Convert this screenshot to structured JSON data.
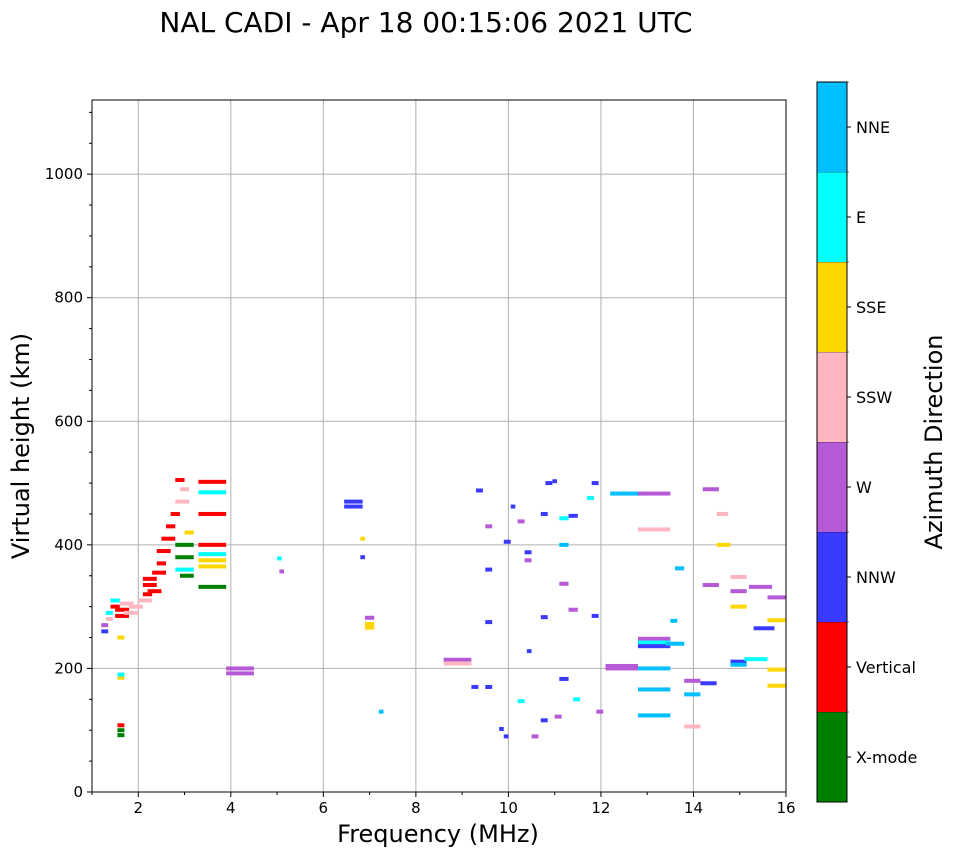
{
  "title": "NAL CADI - Apr 18 00:15:06 2021 UTC",
  "chart_data": {
    "type": "scatter",
    "xlabel": "Frequency (MHz)",
    "ylabel": "Virtual height (km)",
    "xlim": [
      1,
      16
    ],
    "ylim": [
      0,
      1120
    ],
    "xticks": [
      2,
      4,
      6,
      8,
      10,
      12,
      14,
      16
    ],
    "yticks": [
      0,
      200,
      400,
      600,
      800,
      1000
    ],
    "grid": true,
    "colorbar": {
      "label": "Azimuth Direction",
      "categories": [
        {
          "name": "X-mode",
          "color": "#008000"
        },
        {
          "name": "Vertical",
          "color": "#ff0000"
        },
        {
          "name": "NNW",
          "color": "#3a3aff"
        },
        {
          "name": "W",
          "color": "#b659d6"
        },
        {
          "name": "SSW",
          "color": "#ffb6c1"
        },
        {
          "name": "SSE",
          "color": "#ffd700"
        },
        {
          "name": "E",
          "color": "#00ffff"
        },
        {
          "name": "NNE",
          "color": "#00bfff"
        }
      ]
    },
    "segments": [
      {
        "f0": 1.2,
        "f1": 1.35,
        "h": 270,
        "c": "W"
      },
      {
        "f0": 1.2,
        "f1": 1.35,
        "h": 260,
        "c": "NNW"
      },
      {
        "f0": 1.3,
        "f1": 1.45,
        "h": 290,
        "c": "E"
      },
      {
        "f0": 1.3,
        "f1": 1.45,
        "h": 280,
        "c": "SSW"
      },
      {
        "f0": 1.4,
        "f1": 1.6,
        "h": 300,
        "c": "Vertical"
      },
      {
        "f0": 1.4,
        "f1": 1.6,
        "h": 310,
        "c": "E"
      },
      {
        "f0": 1.5,
        "f1": 1.8,
        "h": 295,
        "c": "Vertical"
      },
      {
        "f0": 1.5,
        "f1": 1.8,
        "h": 285,
        "c": "Vertical"
      },
      {
        "f0": 1.6,
        "f1": 1.9,
        "h": 305,
        "c": "SSW"
      },
      {
        "f0": 1.7,
        "f1": 2.0,
        "h": 290,
        "c": "SSW"
      },
      {
        "f0": 1.8,
        "f1": 2.1,
        "h": 300,
        "c": "SSW"
      },
      {
        "f0": 2.0,
        "f1": 2.3,
        "h": 310,
        "c": "SSW"
      },
      {
        "f0": 2.1,
        "f1": 2.3,
        "h": 320,
        "c": "Vertical"
      },
      {
        "f0": 2.1,
        "f1": 2.4,
        "h": 335,
        "c": "Vertical"
      },
      {
        "f0": 2.1,
        "f1": 2.4,
        "h": 345,
        "c": "Vertical"
      },
      {
        "f0": 2.2,
        "f1": 2.5,
        "h": 325,
        "c": "Vertical"
      },
      {
        "f0": 2.3,
        "f1": 2.6,
        "h": 355,
        "c": "Vertical"
      },
      {
        "f0": 2.4,
        "f1": 2.6,
        "h": 370,
        "c": "Vertical"
      },
      {
        "f0": 2.4,
        "f1": 2.7,
        "h": 390,
        "c": "Vertical"
      },
      {
        "f0": 2.5,
        "f1": 2.8,
        "h": 410,
        "c": "Vertical"
      },
      {
        "f0": 2.6,
        "f1": 2.8,
        "h": 430,
        "c": "Vertical"
      },
      {
        "f0": 2.7,
        "f1": 2.9,
        "h": 450,
        "c": "Vertical"
      },
      {
        "f0": 2.8,
        "f1": 3.0,
        "h": 505,
        "c": "Vertical"
      },
      {
        "f0": 2.8,
        "f1": 3.1,
        "h": 470,
        "c": "SSW"
      },
      {
        "f0": 2.9,
        "f1": 3.1,
        "h": 490,
        "c": "SSW"
      },
      {
        "f0": 2.8,
        "f1": 3.2,
        "h": 400,
        "c": "X-mode"
      },
      {
        "f0": 2.8,
        "f1": 3.2,
        "h": 380,
        "c": "X-mode"
      },
      {
        "f0": 2.8,
        "f1": 3.2,
        "h": 360,
        "c": "E"
      },
      {
        "f0": 2.9,
        "f1": 3.2,
        "h": 350,
        "c": "X-mode"
      },
      {
        "f0": 3.0,
        "f1": 3.2,
        "h": 420,
        "c": "SSE"
      },
      {
        "f0": 3.3,
        "f1": 3.9,
        "h": 502,
        "c": "Vertical"
      },
      {
        "f0": 3.3,
        "f1": 3.9,
        "h": 485,
        "c": "E"
      },
      {
        "f0": 3.3,
        "f1": 3.9,
        "h": 450,
        "c": "Vertical"
      },
      {
        "f0": 3.3,
        "f1": 3.9,
        "h": 400,
        "c": "Vertical"
      },
      {
        "f0": 3.3,
        "f1": 3.9,
        "h": 385,
        "c": "E"
      },
      {
        "f0": 3.3,
        "f1": 3.9,
        "h": 375,
        "c": "SSE"
      },
      {
        "f0": 3.3,
        "f1": 3.9,
        "h": 365,
        "c": "SSE"
      },
      {
        "f0": 3.3,
        "f1": 3.9,
        "h": 332,
        "c": "X-mode"
      },
      {
        "f0": 3.9,
        "f1": 4.5,
        "h": 200,
        "c": "W"
      },
      {
        "f0": 3.9,
        "f1": 4.5,
        "h": 192,
        "c": "W"
      },
      {
        "f0": 5.0,
        "f1": 5.1,
        "h": 378,
        "c": "E"
      },
      {
        "f0": 5.05,
        "f1": 5.15,
        "h": 357,
        "c": "W"
      },
      {
        "f0": 6.45,
        "f1": 6.85,
        "h": 470,
        "c": "NNW"
      },
      {
        "f0": 6.45,
        "f1": 6.85,
        "h": 462,
        "c": "NNW"
      },
      {
        "f0": 6.9,
        "f1": 7.1,
        "h": 282,
        "c": "W"
      },
      {
        "f0": 6.9,
        "f1": 7.1,
        "h": 272,
        "c": "SSE"
      },
      {
        "f0": 6.9,
        "f1": 7.1,
        "h": 266,
        "c": "SSE"
      },
      {
        "f0": 7.2,
        "f1": 7.3,
        "h": 130,
        "c": "NNE"
      },
      {
        "f0": 8.6,
        "f1": 9.2,
        "h": 214,
        "c": "W"
      },
      {
        "f0": 8.6,
        "f1": 9.2,
        "h": 208,
        "c": "SSW"
      },
      {
        "f0": 9.5,
        "f1": 9.65,
        "h": 430,
        "c": "W"
      },
      {
        "f0": 9.3,
        "f1": 9.45,
        "h": 488,
        "c": "NNW"
      },
      {
        "f0": 9.5,
        "f1": 9.65,
        "h": 360,
        "c": "NNW"
      },
      {
        "f0": 9.5,
        "f1": 9.65,
        "h": 275,
        "c": "NNW"
      },
      {
        "f0": 9.2,
        "f1": 9.35,
        "h": 170,
        "c": "NNW"
      },
      {
        "f0": 9.5,
        "f1": 9.65,
        "h": 170,
        "c": "NNW"
      },
      {
        "f0": 9.8,
        "f1": 9.9,
        "h": 102,
        "c": "NNW"
      },
      {
        "f0": 9.9,
        "f1": 10.0,
        "h": 90,
        "c": "NNW"
      },
      {
        "f0": 9.9,
        "f1": 10.05,
        "h": 405,
        "c": "NNW"
      },
      {
        "f0": 10.05,
        "f1": 10.15,
        "h": 462,
        "c": "NNW"
      },
      {
        "f0": 10.2,
        "f1": 10.35,
        "h": 438,
        "c": "W"
      },
      {
        "f0": 10.35,
        "f1": 10.5,
        "h": 388,
        "c": "NNW"
      },
      {
        "f0": 10.35,
        "f1": 10.5,
        "h": 375,
        "c": "W"
      },
      {
        "f0": 10.7,
        "f1": 10.85,
        "h": 450,
        "c": "NNW"
      },
      {
        "f0": 10.8,
        "f1": 10.95,
        "h": 500,
        "c": "NNW"
      },
      {
        "f0": 10.95,
        "f1": 11.05,
        "h": 503,
        "c": "NNW"
      },
      {
        "f0": 11.1,
        "f1": 11.3,
        "h": 443,
        "c": "E"
      },
      {
        "f0": 11.3,
        "f1": 11.5,
        "h": 447,
        "c": "NNW"
      },
      {
        "f0": 11.1,
        "f1": 11.3,
        "h": 400,
        "c": "NNE"
      },
      {
        "f0": 11.1,
        "f1": 11.3,
        "h": 337,
        "c": "W"
      },
      {
        "f0": 11.3,
        "f1": 11.5,
        "h": 295,
        "c": "W"
      },
      {
        "f0": 11.8,
        "f1": 11.95,
        "h": 500,
        "c": "NNW"
      },
      {
        "f0": 11.7,
        "f1": 11.85,
        "h": 476,
        "c": "E"
      },
      {
        "f0": 11.8,
        "f1": 11.95,
        "h": 285,
        "c": "NNW"
      },
      {
        "f0": 10.7,
        "f1": 10.85,
        "h": 283,
        "c": "NNW"
      },
      {
        "f0": 10.4,
        "f1": 10.5,
        "h": 228,
        "c": "NNW"
      },
      {
        "f0": 10.7,
        "f1": 10.85,
        "h": 116,
        "c": "NNW"
      },
      {
        "f0": 11.1,
        "f1": 11.3,
        "h": 183,
        "c": "NNW"
      },
      {
        "f0": 12.2,
        "f1": 12.9,
        "h": 483,
        "c": "NNE"
      },
      {
        "f0": 12.8,
        "f1": 13.5,
        "h": 483,
        "c": "W"
      },
      {
        "f0": 12.8,
        "f1": 13.5,
        "h": 425,
        "c": "SSW"
      },
      {
        "f0": 12.1,
        "f1": 12.8,
        "h": 204,
        "c": "W"
      },
      {
        "f0": 12.1,
        "f1": 12.8,
        "h": 200,
        "c": "W"
      },
      {
        "f0": 12.8,
        "f1": 13.5,
        "h": 248,
        "c": "W"
      },
      {
        "f0": 12.8,
        "f1": 13.5,
        "h": 242,
        "c": "E"
      },
      {
        "f0": 12.8,
        "f1": 13.5,
        "h": 236,
        "c": "NNW"
      },
      {
        "f0": 12.8,
        "f1": 13.5,
        "h": 200,
        "c": "NNE"
      },
      {
        "f0": 12.8,
        "f1": 13.5,
        "h": 166,
        "c": "NNE"
      },
      {
        "f0": 12.8,
        "f1": 13.5,
        "h": 124,
        "c": "NNE"
      },
      {
        "f0": 13.5,
        "f1": 13.65,
        "h": 277,
        "c": "NNE"
      },
      {
        "f0": 13.6,
        "f1": 13.8,
        "h": 362,
        "c": "NNE"
      },
      {
        "f0": 13.4,
        "f1": 13.8,
        "h": 240,
        "c": "NNE"
      },
      {
        "f0": 13.8,
        "f1": 14.15,
        "h": 180,
        "c": "W"
      },
      {
        "f0": 13.8,
        "f1": 14.15,
        "h": 158,
        "c": "NNE"
      },
      {
        "f0": 14.15,
        "f1": 14.5,
        "h": 176,
        "c": "NNW"
      },
      {
        "f0": 13.8,
        "f1": 14.15,
        "h": 106,
        "c": "SSW"
      },
      {
        "f0": 14.2,
        "f1": 14.55,
        "h": 490,
        "c": "W"
      },
      {
        "f0": 14.5,
        "f1": 14.75,
        "h": 450,
        "c": "SSW"
      },
      {
        "f0": 14.5,
        "f1": 14.8,
        "h": 400,
        "c": "SSE"
      },
      {
        "f0": 14.2,
        "f1": 14.55,
        "h": 335,
        "c": "W"
      },
      {
        "f0": 14.8,
        "f1": 15.15,
        "h": 348,
        "c": "SSW"
      },
      {
        "f0": 14.8,
        "f1": 15.15,
        "h": 325,
        "c": "W"
      },
      {
        "f0": 14.8,
        "f1": 15.15,
        "h": 300,
        "c": "SSE"
      },
      {
        "f0": 14.8,
        "f1": 15.15,
        "h": 211,
        "c": "NNW"
      },
      {
        "f0": 14.8,
        "f1": 15.15,
        "h": 206,
        "c": "NNE"
      },
      {
        "f0": 15.1,
        "f1": 15.6,
        "h": 215,
        "c": "E"
      },
      {
        "f0": 15.2,
        "f1": 15.7,
        "h": 332,
        "c": "W"
      },
      {
        "f0": 15.3,
        "f1": 15.75,
        "h": 265,
        "c": "NNW"
      },
      {
        "f0": 15.6,
        "f1": 16.0,
        "h": 315,
        "c": "W"
      },
      {
        "f0": 15.6,
        "f1": 16.0,
        "h": 278,
        "c": "SSE"
      },
      {
        "f0": 15.6,
        "f1": 16.0,
        "h": 198,
        "c": "SSE"
      },
      {
        "f0": 15.6,
        "f1": 16.0,
        "h": 172,
        "c": "SSE"
      },
      {
        "f0": 1.55,
        "f1": 1.7,
        "h": 100,
        "c": "X-mode"
      },
      {
        "f0": 1.55,
        "f1": 1.7,
        "h": 92,
        "c": "X-mode"
      },
      {
        "f0": 1.55,
        "f1": 1.7,
        "h": 108,
        "c": "Vertical"
      },
      {
        "f0": 1.55,
        "f1": 1.7,
        "h": 185,
        "c": "SSE"
      },
      {
        "f0": 1.55,
        "f1": 1.7,
        "h": 190,
        "c": "E"
      },
      {
        "f0": 1.55,
        "f1": 1.7,
        "h": 250,
        "c": "SSE"
      },
      {
        "f0": 6.8,
        "f1": 6.9,
        "h": 380,
        "c": "NNW"
      },
      {
        "f0": 6.8,
        "f1": 6.9,
        "h": 410,
        "c": "SSE"
      },
      {
        "f0": 10.2,
        "f1": 10.35,
        "h": 147,
        "c": "E"
      },
      {
        "f0": 10.5,
        "f1": 10.65,
        "h": 90,
        "c": "W"
      },
      {
        "f0": 11.0,
        "f1": 11.15,
        "h": 122,
        "c": "W"
      },
      {
        "f0": 11.4,
        "f1": 11.55,
        "h": 150,
        "c": "E"
      },
      {
        "f0": 11.9,
        "f1": 12.05,
        "h": 130,
        "c": "W"
      }
    ]
  }
}
